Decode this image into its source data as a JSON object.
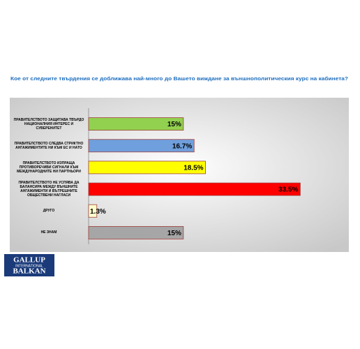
{
  "chart_data": {
    "type": "bar",
    "orientation": "horizontal",
    "title": "Кое от следните твърдения се доближава най-много до Вашето виждане за външнополитическия курс на кабинета?",
    "categories": [
      "ПРАВИТЕЛСТВОТО ЗАЩИТАВА ТВЪРДО НАЦИОНАЛНИЯ ИНТЕРЕС И СУВЕРЕНИТЕТ",
      "ПРАВИТЕЛСТВОТО СЛЕДВА СТРИКТНО АНГАЖИМЕНТИТЕ НИ КЪМ ЕС И НАТО",
      "ПРАВИТЕЛСТВОТО ИЗПРАЩА ПРОТИВОРЕЧИВИ СИГНАЛИ КЪМ МЕЖДУНАРОДНИТЕ НИ ПАРТНЬОРИ",
      "ПРАВИТЕЛСТВОТО НЕ УСПЯВА ДА БАЛАНСИРА МЕЖДУ ВЪНШНИТЕ АНГАЖИМЕНТИ И ВЪТРЕШНИТЕ ОБЩЕСТВЕНИ НАГЛАСИ",
      "ДРУГО",
      "НЕ ЗНАМ"
    ],
    "values": [
      15,
      16.7,
      18.5,
      33.5,
      1.3,
      15
    ],
    "value_labels": [
      "15%",
      "16.7%",
      "18.5%",
      "33.5%",
      "1.3%",
      "15%"
    ],
    "colors": [
      "#92d050",
      "#6f9fdc",
      "#ffff00",
      "#ff0000",
      "#ffffcc",
      "#a6a6a6"
    ],
    "xlim": [
      0,
      35
    ]
  },
  "logo": {
    "lines": [
      "GALLUP",
      "INTERNATIONAL",
      "BALKAN"
    ]
  }
}
